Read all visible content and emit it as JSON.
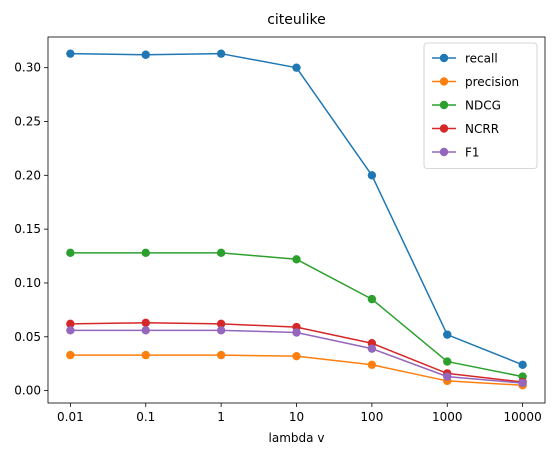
{
  "chart_data": {
    "type": "line",
    "title": "citeulike",
    "xlabel": "lambda v",
    "ylabel": "",
    "categories": [
      "0.01",
      "0.1",
      "1",
      "10",
      "100",
      "1000",
      "10000"
    ],
    "yticks": [
      "0.00",
      "0.05",
      "0.10",
      "0.15",
      "0.20",
      "0.25",
      "0.30"
    ],
    "ylim": [
      -0.0115,
      0.3285
    ],
    "grid": false,
    "legend_position": "top-right",
    "series": [
      {
        "name": "recall",
        "color": "#1f77b4",
        "values": [
          0.313,
          0.312,
          0.313,
          0.3,
          0.2,
          0.052,
          0.024
        ]
      },
      {
        "name": "precision",
        "color": "#ff7f0e",
        "values": [
          0.033,
          0.033,
          0.033,
          0.032,
          0.024,
          0.009,
          0.005
        ]
      },
      {
        "name": "NDCG",
        "color": "#2ca02c",
        "values": [
          0.128,
          0.128,
          0.128,
          0.122,
          0.085,
          0.027,
          0.013
        ]
      },
      {
        "name": "NCRR",
        "color": "#d62728",
        "values": [
          0.062,
          0.063,
          0.062,
          0.059,
          0.044,
          0.016,
          0.008
        ]
      },
      {
        "name": "F1",
        "color": "#9467bd",
        "values": [
          0.056,
          0.056,
          0.056,
          0.054,
          0.039,
          0.013,
          0.007
        ]
      }
    ]
  }
}
